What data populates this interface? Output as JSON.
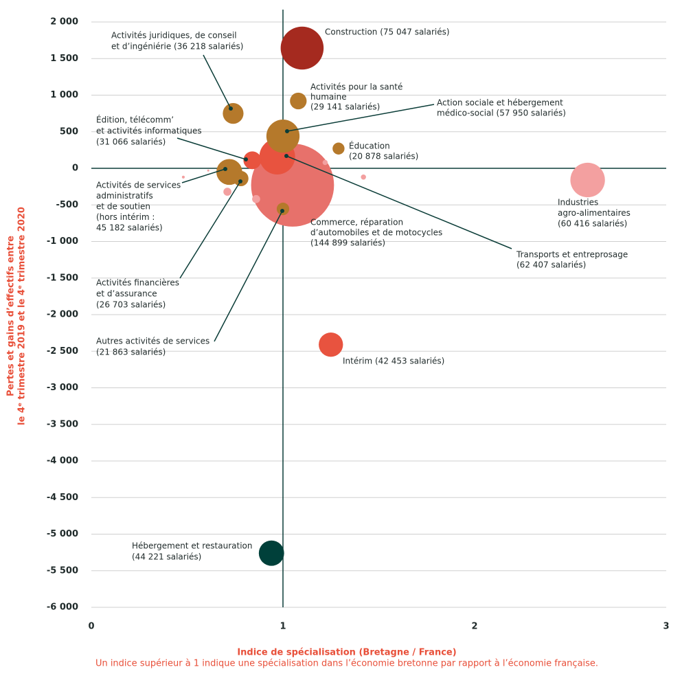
{
  "chart_data": {
    "type": "bubble",
    "xlabel": "Indice de spécialisation (Bretagne / France)",
    "note": "Un indice supérieur à 1 indique une spécialisation dans l’économie bretonne par rapport à l’économie française.",
    "ylabel": [
      "Pertes et gains d’effectifs entre",
      "le 4ᵉ trimestre 2019 et le 4ᵉ trimestre 2020"
    ],
    "xlim": [
      0,
      3
    ],
    "xticks": [
      0,
      1,
      2,
      3
    ],
    "ylim": [
      -6000,
      2000
    ],
    "yticks": [
      {
        "value": 2000,
        "label": "2 000"
      },
      {
        "value": 1500,
        "label": "1 500"
      },
      {
        "value": 1000,
        "label": "1 000"
      },
      500,
      0,
      -500,
      {
        "value": -1000,
        "label": "-1 000"
      },
      {
        "value": -1500,
        "label": "-1 500"
      },
      {
        "value": -2000,
        "label": "-2 000"
      },
      {
        "value": -2500,
        "label": "-2 500"
      },
      {
        "value": -3000,
        "label": "-3 000"
      },
      {
        "value": -3500,
        "label": "-3 500"
      },
      {
        "value": -4000,
        "label": "-4 000"
      },
      {
        "value": -4500,
        "label": "-4 500"
      },
      {
        "value": -5000,
        "label": "-5 000"
      },
      {
        "value": -5500,
        "label": "-5 500"
      },
      {
        "value": -6000,
        "label": "-6 000"
      }
    ],
    "grid": true,
    "crosshair": {
      "x": 1,
      "y": 0
    },
    "points": [
      {
        "x": 1.05,
        "y": -230,
        "size": 144899,
        "color": "#e7716b",
        "label": [
          "Commerce, réparation",
          "d’automobiles et de motocycles",
          "(144 899 salariés)"
        ]
      },
      {
        "x": 2.59,
        "y": -160,
        "size": 60416,
        "color": "#f3a0a0",
        "label": [
          "Industries",
          "agro-alimentaires",
          "(60 416 salariés)"
        ]
      },
      {
        "x": 1.1,
        "y": 1643,
        "size": 75047,
        "color": "#a52a1f",
        "label": [
          "Construction (75 047 salariés)"
        ]
      },
      {
        "x": 0.97,
        "y": 160,
        "size": 62407,
        "color": "#e8533f",
        "label": [
          "Transports et entreprosage",
          "(62 407 salariés)"
        ]
      },
      {
        "x": 1.0,
        "y": 440,
        "size": 57950,
        "color": "#b5792b",
        "label": [
          "Action sociale et hébergement",
          "médico-social (57 950 salariés)"
        ]
      },
      {
        "x": 0.74,
        "y": 750,
        "size": 36218,
        "color": "#b5792b",
        "label": [
          "Activités juridiques, de conseil",
          "et d’ingéniérie (36 218 salariés)"
        ]
      },
      {
        "x": 1.08,
        "y": 920,
        "size": 29141,
        "color": "#b5792b",
        "label": [
          "Activités pour la santé",
          "humaine",
          "(29 141 salariés)"
        ]
      },
      {
        "x": 0.84,
        "y": 110,
        "size": 31066,
        "color": "#e8533f",
        "label": [
          "Édition, télécomm’",
          "et activités informatiques",
          "(31 066 salariés)"
        ]
      },
      {
        "x": 1.29,
        "y": 270,
        "size": 20878,
        "color": "#b5792b",
        "label": [
          "Éducation",
          "(20 878 salariés)"
        ]
      },
      {
        "x": 0.72,
        "y": -50,
        "size": 45182,
        "color": "#b5792b",
        "label": [
          "Activités de services",
          "administratifs",
          "et de soutien",
          "(hors intérim :",
          "45 182 salariés)"
        ]
      },
      {
        "x": 0.78,
        "y": -140,
        "size": 26703,
        "color": "#b5792b",
        "label": [
          "Activités financières",
          "et d’assurance",
          "(26 703 salariés)"
        ]
      },
      {
        "x": 1.0,
        "y": -555,
        "size": 21863,
        "color": "#b5792b",
        "label": [
          "Autres activités de services",
          "(21 863 salariés)"
        ]
      },
      {
        "x": 1.25,
        "y": -2410,
        "size": 42453,
        "color": "#e8533f",
        "label": [
          "Intérim (42 453 salariés)"
        ]
      },
      {
        "x": 0.94,
        "y": -5260,
        "size": 44221,
        "color": "#00403a",
        "label": [
          "Hébergement et restauration",
          "(44 221 salariés)"
        ]
      },
      {
        "x": 0.48,
        "y": -120,
        "size": 5000,
        "color": "#f3a0a0"
      },
      {
        "x": 0.61,
        "y": -30,
        "size": 3600,
        "color": "#f3a0a0"
      },
      {
        "x": 0.71,
        "y": -320,
        "size": 14000,
        "color": "#f3a0a0"
      },
      {
        "x": 0.86,
        "y": -420,
        "size": 14000,
        "color": "#f3a0a0"
      },
      {
        "x": 1.22,
        "y": 80,
        "size": 9000,
        "color": "#f3a0a0"
      },
      {
        "x": 1.42,
        "y": -120,
        "size": 9000,
        "color": "#f3a0a0"
      }
    ]
  }
}
